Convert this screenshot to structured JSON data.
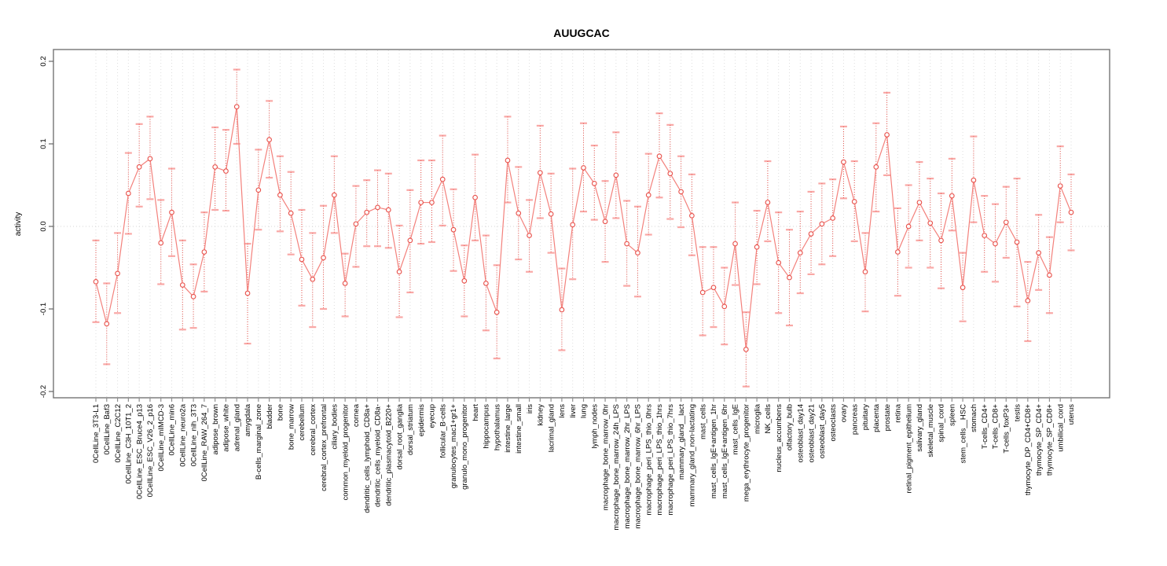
{
  "title": "AUUGCAC",
  "colors": {
    "point": "#e8504a",
    "stem": "#e8504a",
    "cap": "#f9a8a6",
    "line": "#f3817c",
    "grid": "#dedede",
    "zero_line": "#d6d6d6",
    "axis_box": "#757575",
    "x_tick": "#8f8f8f",
    "y_tick": "#666666",
    "label_text": "#000000"
  },
  "chart_data": {
    "type": "scatter",
    "subtype": "point-estimates-with-error-bars",
    "title": "AUUGCAC",
    "xlabel": "",
    "ylabel": "activity",
    "ylim": [
      -0.2,
      0.2
    ],
    "ytick_values": [
      -0.2,
      -0.1,
      0.0,
      0.1,
      0.2
    ],
    "ytick_labels": [
      "-0.2",
      "-0.1",
      "0.0",
      "0.1",
      "0.2"
    ],
    "grid": "vertical dotted gridline per category; dotted horizontal line at 0",
    "legend": "none",
    "categories": [
      "0CellLine_3T3-L1",
      "0CellLine_Baf3",
      "0CellLine_C2C12",
      "0CellLine_C3H_10T1_2",
      "0CellLine_ESC_Bruce4_p13",
      "0CellLine_ESC_V26_2_p16",
      "0CellLine_mIMCD-3",
      "0CellLine_min6",
      "0CellLine_neuro2a",
      "0CellLine_nih_3T3",
      "0CellLine_RAW_264_7",
      "adipose_brown",
      "adipose_white",
      "adrenal_gland",
      "amygdala",
      "B-cells_marginal_zone",
      "bladder",
      "bone",
      "bone_marrow",
      "cerebellum",
      "cerebral_cortex",
      "cerebral_cortex_prefrontal",
      "ciliary_bodies",
      "common_myeloid_progenitor",
      "cornea",
      "dendritic_cells_lymphoid_CD8a+",
      "dendritic_cells_myeloid_CD8a-",
      "dendritic_plasmacytoid_B220+",
      "dorsal_root_ganglia",
      "dorsal_striatum",
      "epidermis",
      "eyecup",
      "follicular_B-cells",
      "granulocytes_mac1+gr1+",
      "granulo_mono_progenitor",
      "heart",
      "hippocampus",
      "hypothalamus",
      "intestine_large",
      "intestine_small",
      "iris",
      "kidney",
      "lacrimal_gland",
      "lens",
      "liver",
      "lung",
      "lymph_nodes",
      "macrophage_bone_marrow_0hr",
      "macrophage_bone_marrow_24h_LPS",
      "macrophage_bone_marrow_2hr_LPS",
      "macrophage_bone_marrow_6hr_LPS",
      "macrophage_peri_LPS_thio_0hrs",
      "macrophage_peri_LPS_thio_1hrs",
      "macrophage_peri_LPS_thio_7hrs",
      "mammary_gland__lact",
      "mammary_gland_non-lactating",
      "mast_cells",
      "mast_cells_IgE+antigen_1hr",
      "mast_cells_IgE+antigen_6hr",
      "mast_cells_IgE",
      "mega_erythrocyte_progenitor",
      "microglia",
      "NK_cells",
      "nucleus_accumbens",
      "olfactory_bulb",
      "osteoblast_day14",
      "osteoblast_day21",
      "osteoblast_day5",
      "osteoclasts",
      "ovary",
      "pancreas",
      "pituitary",
      "placenta",
      "prostate",
      "retina",
      "retinal_pigment_epithelium",
      "salivary_gland",
      "skeletal_muscle",
      "spinal_cord",
      "spleen",
      "stem_cells__HSC",
      "stomach",
      "T-cells_CD4+",
      "T-cells_CD8+",
      "T-cells_foxP3+",
      "testis",
      "thymocyte_DP_CD4+CD8+",
      "thymocyte_SP_CD4+",
      "thymocyte_SP_CD8+",
      "umbilical_cord",
      "uterus"
    ],
    "series": [
      {
        "name": "activity",
        "values": [
          -0.067,
          -0.118,
          -0.057,
          0.04,
          0.072,
          0.082,
          -0.02,
          0.017,
          -0.071,
          -0.085,
          -0.031,
          0.072,
          0.067,
          0.145,
          -0.081,
          0.044,
          0.105,
          0.038,
          0.016,
          -0.04,
          -0.064,
          -0.038,
          0.038,
          -0.069,
          0.003,
          0.017,
          0.023,
          0.02,
          -0.055,
          -0.017,
          0.029,
          0.029,
          0.057,
          -0.004,
          -0.066,
          0.035,
          -0.069,
          -0.104,
          0.08,
          0.016,
          -0.011,
          0.065,
          0.015,
          -0.101,
          0.002,
          0.071,
          0.052,
          0.006,
          0.062,
          -0.021,
          -0.032,
          0.038,
          0.085,
          0.064,
          0.042,
          0.013,
          -0.08,
          -0.074,
          -0.097,
          -0.021,
          -0.149,
          -0.025,
          0.029,
          -0.044,
          -0.062,
          -0.032,
          -0.009,
          0.003,
          0.01,
          0.078,
          0.03,
          -0.055,
          0.072,
          0.111,
          -0.031,
          0.0,
          0.029,
          0.004,
          -0.017,
          0.037,
          -0.074,
          0.056,
          -0.011,
          -0.021,
          0.005,
          -0.019,
          -0.09,
          -0.032,
          -0.059,
          0.049,
          0.017
        ],
        "ci_low": [
          -0.116,
          -0.167,
          -0.105,
          -0.009,
          0.024,
          0.033,
          -0.07,
          -0.036,
          -0.125,
          -0.123,
          -0.079,
          0.02,
          0.019,
          0.1,
          -0.142,
          -0.004,
          0.059,
          -0.006,
          -0.034,
          -0.096,
          -0.122,
          -0.1,
          -0.008,
          -0.109,
          -0.049,
          -0.024,
          -0.024,
          -0.026,
          -0.11,
          -0.08,
          -0.021,
          -0.019,
          0.001,
          -0.054,
          -0.109,
          -0.017,
          -0.126,
          -0.16,
          0.029,
          -0.04,
          -0.055,
          0.01,
          -0.032,
          -0.15,
          -0.064,
          0.018,
          0.008,
          -0.043,
          0.01,
          -0.072,
          -0.085,
          -0.01,
          0.035,
          0.009,
          -0.001,
          -0.035,
          -0.132,
          -0.122,
          -0.143,
          -0.071,
          -0.194,
          -0.07,
          -0.018,
          -0.105,
          -0.12,
          -0.081,
          -0.058,
          -0.046,
          -0.036,
          0.034,
          -0.018,
          -0.103,
          0.018,
          0.062,
          -0.084,
          -0.05,
          -0.017,
          -0.05,
          -0.075,
          -0.005,
          -0.115,
          0.005,
          -0.055,
          -0.067,
          -0.038,
          -0.097,
          -0.139,
          -0.077,
          -0.105,
          0.005,
          -0.029
        ],
        "ci_high": [
          -0.017,
          -0.069,
          -0.008,
          0.089,
          0.124,
          0.133,
          0.032,
          0.07,
          -0.017,
          -0.046,
          0.017,
          0.12,
          0.117,
          0.19,
          -0.021,
          0.093,
          0.152,
          0.085,
          0.066,
          0.02,
          -0.008,
          0.025,
          0.085,
          -0.033,
          0.049,
          0.056,
          0.068,
          0.064,
          0.001,
          0.044,
          0.08,
          0.08,
          0.11,
          0.045,
          -0.023,
          0.087,
          -0.011,
          -0.047,
          0.133,
          0.072,
          0.032,
          0.122,
          0.064,
          -0.051,
          0.07,
          0.125,
          0.098,
          0.055,
          0.114,
          0.031,
          0.024,
          0.088,
          0.137,
          0.123,
          0.085,
          0.063,
          -0.025,
          -0.025,
          -0.05,
          0.029,
          -0.104,
          0.019,
          0.079,
          0.017,
          -0.004,
          0.018,
          0.042,
          0.052,
          0.057,
          0.121,
          0.079,
          -0.008,
          0.125,
          0.162,
          0.022,
          0.05,
          0.078,
          0.058,
          0.04,
          0.082,
          -0.032,
          0.109,
          0.037,
          0.027,
          0.048,
          0.058,
          -0.043,
          0.014,
          -0.013,
          0.097,
          0.063
        ]
      }
    ]
  }
}
